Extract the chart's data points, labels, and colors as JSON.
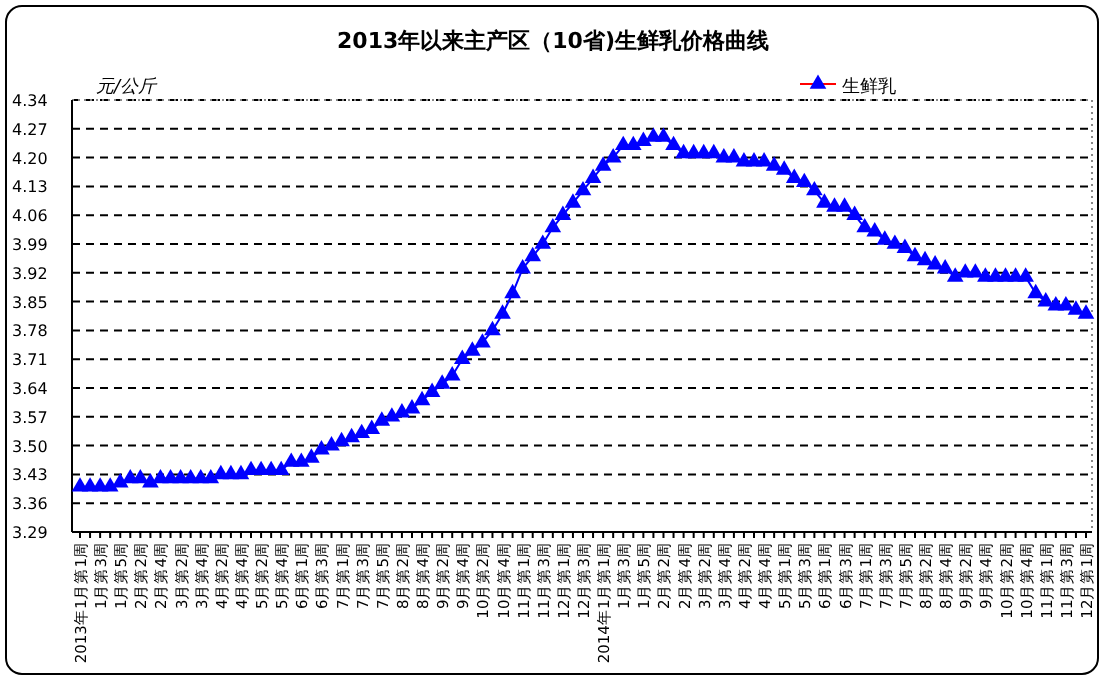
{
  "chart_data": {
    "type": "line",
    "title": "2013年以来主产区（10省)生鲜乳价格曲线",
    "ylabel": "元/公斤",
    "categories": [
      "2013年1月第1周",
      null,
      "1月第3周",
      null,
      "1月第5周",
      null,
      "2月第2周",
      null,
      "2月第4周",
      null,
      "3月第2周",
      null,
      "3月第4周",
      null,
      "4月第2周",
      null,
      "4月第4周",
      null,
      "5月第2周",
      null,
      "5月第4周",
      null,
      "6月第1周",
      null,
      "6月第3周",
      null,
      "7月第1周",
      null,
      "7月第3周",
      null,
      "7月第5周",
      null,
      "8月第2周",
      null,
      "8月第4周",
      null,
      "9月第2周",
      null,
      "9月第4周",
      null,
      "10月第2周",
      null,
      "10月第4周",
      null,
      "11月第1周",
      null,
      "11月第3周",
      null,
      "12月第1周",
      null,
      "12月第3周",
      null,
      "2014年1月第1周",
      null,
      "1月第3周",
      null,
      "1月第5周",
      null,
      "2月第2周",
      null,
      "2月第4周",
      null,
      "3月第2周",
      null,
      "3月第4周",
      null,
      "4月第2周",
      null,
      "4月第4周",
      null,
      "5月第1周",
      null,
      "5月第3周",
      null,
      "6月第1周",
      null,
      "6月第3周",
      null,
      "7月第1周",
      null,
      "7月第3周",
      null,
      "7月第5周",
      null,
      "8月第2周",
      null,
      "8月第4周",
      null,
      "9月第2周",
      null,
      "9月第4周",
      null,
      "10月第2周",
      null,
      "10月第4周",
      null,
      "11月第1周",
      null,
      "11月第3周",
      null,
      "12月第1周"
    ],
    "series": [
      {
        "name": "生鲜乳",
        "color": "#0000ff",
        "values": [
          3.4,
          3.4,
          3.4,
          3.4,
          3.41,
          3.42,
          3.42,
          3.41,
          3.42,
          3.42,
          3.42,
          3.42,
          3.42,
          3.42,
          3.43,
          3.43,
          3.43,
          3.44,
          3.44,
          3.44,
          3.44,
          3.46,
          3.46,
          3.47,
          3.49,
          3.5,
          3.51,
          3.52,
          3.53,
          3.54,
          3.56,
          3.57,
          3.58,
          3.59,
          3.61,
          3.63,
          3.65,
          3.67,
          3.71,
          3.73,
          3.75,
          3.78,
          3.82,
          3.87,
          3.93,
          3.96,
          3.99,
          4.03,
          4.06,
          4.09,
          4.12,
          4.15,
          4.18,
          4.2,
          4.23,
          4.23,
          4.24,
          4.25,
          4.25,
          4.23,
          4.21,
          4.21,
          4.21,
          4.21,
          4.2,
          4.2,
          4.19,
          4.19,
          4.19,
          4.18,
          4.17,
          4.15,
          4.14,
          4.12,
          4.09,
          4.08,
          4.08,
          4.06,
          4.03,
          4.02,
          4.0,
          3.99,
          3.98,
          3.96,
          3.95,
          3.94,
          3.93,
          3.91,
          3.92,
          3.92,
          3.91,
          3.91,
          3.91,
          3.91,
          3.91,
          3.87,
          3.85,
          3.84,
          3.84,
          3.83,
          3.82
        ]
      }
    ],
    "ylim": [
      3.29,
      4.34
    ],
    "yticks": [
      3.29,
      3.36,
      3.43,
      {
        "value": 3.5,
        "label": "3.50"
      },
      3.57,
      3.64,
      3.71,
      3.78,
      3.85,
      3.92,
      3.99,
      4.06,
      4.13,
      {
        "value": 4.2,
        "label": "4.20"
      },
      4.27,
      4.34
    ],
    "grid": "y",
    "legend": "top right",
    "marker": "triangle",
    "line_style": "solid"
  }
}
